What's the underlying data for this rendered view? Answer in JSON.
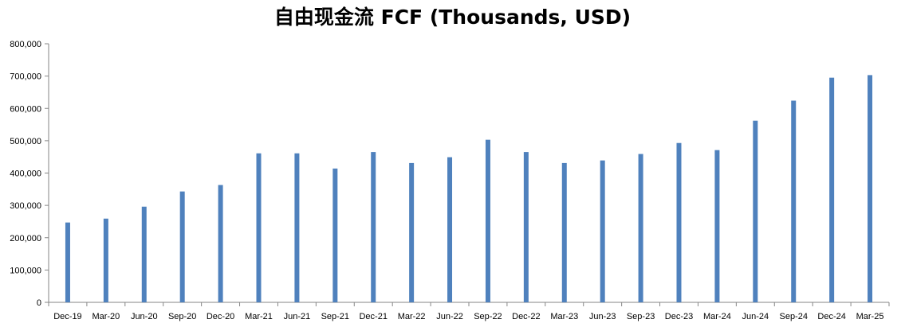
{
  "chart_data": {
    "type": "bar",
    "title": "自由现金流 FCF (Thousands, USD)",
    "xlabel": "",
    "ylabel": "",
    "ylim": [
      0,
      800000
    ],
    "yticks": [
      "0",
      "100,000",
      "200,000",
      "300,000",
      "400,000",
      "500,000",
      "600,000",
      "700,000",
      "800,000"
    ],
    "grid": false,
    "bar_color": "#4f81bd",
    "categories": [
      "Dec-19",
      "Mar-20",
      "Jun-20",
      "Sep-20",
      "Dec-20",
      "Mar-21",
      "Jun-21",
      "Sep-21",
      "Dec-21",
      "Mar-22",
      "Jun-22",
      "Sep-22",
      "Dec-22",
      "Mar-23",
      "Jun-23",
      "Sep-23",
      "Dec-23",
      "Mar-24",
      "Jun-24",
      "Sep-24",
      "Dec-24",
      "Mar-25"
    ],
    "values": [
      247000,
      259000,
      296000,
      343000,
      363000,
      461000,
      461000,
      414000,
      465000,
      431000,
      449000,
      503000,
      465000,
      431000,
      439000,
      459000,
      493000,
      471000,
      562000,
      624000,
      695000,
      703000
    ]
  }
}
